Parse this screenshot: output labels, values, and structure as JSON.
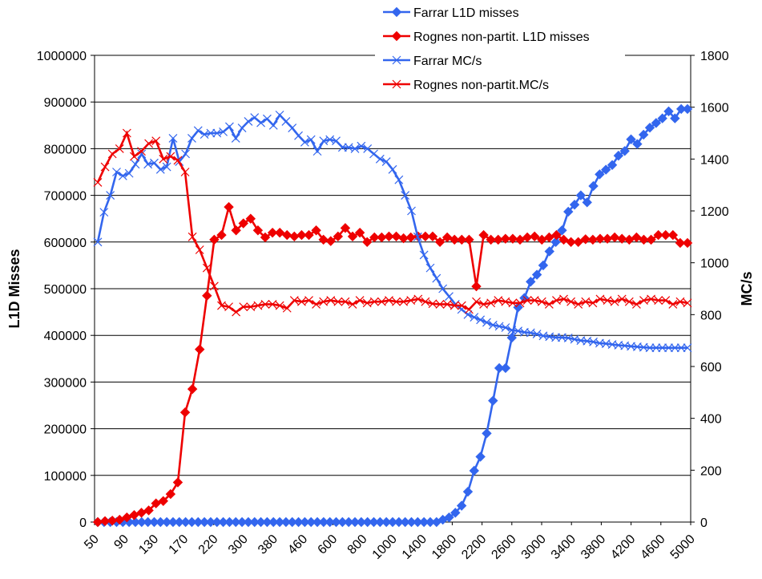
{
  "chart_data": {
    "type": "line",
    "title": "",
    "xlabel": "",
    "ylabel_left": "L1D Misses",
    "ylabel_right": "MC/s",
    "ylim_left": [
      0,
      1000000
    ],
    "ylim_right": [
      0,
      1800
    ],
    "yticks_left": [
      "0",
      "100000",
      "200000",
      "300000",
      "400000",
      "500000",
      "600000",
      "700000",
      "800000",
      "900000",
      "1000000"
    ],
    "yticks_right": [
      "0",
      "200",
      "400",
      "600",
      "800",
      "1000",
      "1200",
      "1400",
      "1600",
      "1800"
    ],
    "xtick_labels": [
      "50",
      "90",
      "130",
      "170",
      "220",
      "300",
      "380",
      "460",
      "600",
      "800",
      "1000",
      "1400",
      "1800",
      "2200",
      "2600",
      "3000",
      "3400",
      "3800",
      "4200",
      "4600",
      "5000"
    ],
    "grid": true,
    "legend_position": "top-center",
    "colors": {
      "blue": "#3366ee",
      "red": "#ee0000"
    },
    "series": [
      {
        "name": "Farrar L1D misses",
        "axis": "left",
        "marker": "diamond",
        "color": "#3366ee",
        "values": [
          0,
          0,
          0,
          0,
          0,
          0,
          0,
          0,
          0,
          0,
          0,
          0,
          0,
          0,
          0,
          0,
          0,
          0,
          0,
          0,
          0,
          0,
          0,
          0,
          0,
          0,
          0,
          0,
          0,
          0,
          0,
          0,
          0,
          0,
          0,
          0,
          0,
          0,
          0,
          0,
          0,
          0,
          0,
          0,
          0,
          0,
          0,
          0,
          0,
          0,
          0,
          0,
          0,
          0,
          0,
          5000,
          10000,
          20000,
          35000,
          65000,
          110000,
          140000,
          190000,
          260000,
          330000,
          330000,
          395000,
          460000,
          480000,
          515000,
          530000,
          550000,
          580000,
          600000,
          625000,
          665000,
          680000,
          700000,
          685000,
          720000,
          745000,
          755000,
          765000,
          785000,
          795000,
          820000,
          810000,
          830000,
          845000,
          855000,
          865000,
          880000,
          865000,
          885000,
          885000
        ]
      },
      {
        "name": "Rognes non-partit. L1D misses",
        "axis": "left",
        "marker": "diamond",
        "color": "#ee0000",
        "values": [
          0,
          2000,
          3000,
          5000,
          10000,
          15000,
          20000,
          25000,
          40000,
          45000,
          60000,
          85000,
          235000,
          285000,
          370000,
          485000,
          605000,
          615000,
          675000,
          625000,
          640000,
          650000,
          625000,
          610000,
          620000,
          620000,
          615000,
          612000,
          615000,
          615000,
          625000,
          605000,
          602000,
          612000,
          630000,
          612000,
          620000,
          600000,
          610000,
          610000,
          612000,
          612000,
          608000,
          610000,
          612000,
          612000,
          612000,
          600000,
          610000,
          605000,
          605000,
          605000,
          505000,
          615000,
          605000,
          605000,
          607000,
          607000,
          605000,
          610000,
          612000,
          605000,
          610000,
          615000,
          605000,
          600000,
          600000,
          606000,
          605000,
          607000,
          607000,
          610000,
          607000,
          605000,
          610000,
          605000,
          605000,
          615000,
          615000,
          615000,
          598000,
          598000
        ]
      },
      {
        "name": "Farrar MC/s",
        "axis": "right",
        "marker": "x",
        "color": "#3366ee",
        "values": [
          1080,
          1195,
          1260,
          1350,
          1335,
          1345,
          1380,
          1420,
          1380,
          1385,
          1360,
          1370,
          1480,
          1390,
          1420,
          1480,
          1510,
          1495,
          1500,
          1500,
          1505,
          1525,
          1480,
          1520,
          1545,
          1560,
          1540,
          1555,
          1530,
          1570,
          1545,
          1520,
          1490,
          1465,
          1475,
          1430,
          1470,
          1475,
          1470,
          1445,
          1445,
          1440,
          1450,
          1440,
          1420,
          1400,
          1390,
          1360,
          1320,
          1260,
          1200,
          1100,
          1030,
          980,
          940,
          900,
          870,
          840,
          820,
          800,
          790,
          780,
          770,
          760,
          755,
          750,
          740,
          737,
          732,
          730,
          725,
          718,
          715,
          712,
          712,
          710,
          705,
          700,
          698,
          695,
          690,
          688,
          685,
          682,
          680,
          678,
          676,
          674,
          672,
          672,
          672,
          672,
          672,
          672,
          672
        ]
      },
      {
        "name": "Rognes non-partit.MC/s",
        "axis": "right",
        "marker": "x",
        "color": "#ee0000",
        "values": [
          1310,
          1370,
          1420,
          1440,
          1500,
          1410,
          1430,
          1460,
          1470,
          1400,
          1410,
          1395,
          1350,
          1100,
          1050,
          980,
          910,
          835,
          830,
          810,
          830,
          830,
          835,
          840,
          840,
          835,
          825,
          855,
          850,
          855,
          840,
          850,
          855,
          850,
          850,
          840,
          855,
          845,
          850,
          850,
          855,
          850,
          850,
          855,
          860,
          850,
          842,
          840,
          840,
          835,
          835,
          820,
          850,
          840,
          845,
          855,
          850,
          845,
          845,
          855,
          855,
          850,
          840,
          855,
          860,
          850,
          840,
          850,
          845,
          860,
          855,
          850,
          860,
          850,
          840,
          855,
          860,
          855,
          855,
          840,
          850,
          845
        ]
      }
    ]
  }
}
